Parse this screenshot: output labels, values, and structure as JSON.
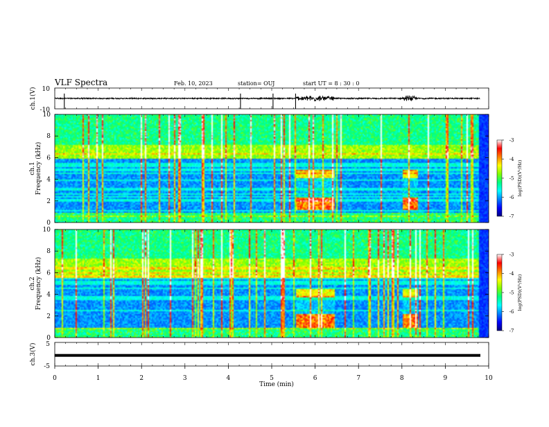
{
  "header": {
    "title": "VLF Spectra",
    "date": "Feb. 10, 2023",
    "station": "station= OUJ",
    "start_ut": "start  UT =   8  : 30 : 0"
  },
  "chart_data": [
    {
      "type": "line",
      "name": "waveform-ch1",
      "ylabel": "ch.1(V)",
      "ylim": [
        -10,
        10
      ],
      "yticks": [
        "10",
        "-10"
      ],
      "xlim": [
        0,
        10
      ],
      "bursts_min": [
        [
          5.55,
          6.45
        ],
        [
          8.0,
          8.35
        ]
      ],
      "spikes_min": [
        0.22,
        4.28,
        5.03,
        5.55
      ]
    },
    {
      "type": "heatmap",
      "name": "spectrogram-ch1",
      "ylabel": "ch.1\nFrequency (kHz)",
      "ylim": [
        0,
        10
      ],
      "yticks": [
        "0",
        "2",
        "4",
        "6",
        "8",
        "10"
      ],
      "xlim": [
        0,
        10
      ],
      "colorbar": {
        "label": "log(PSD)(V²/Hz)",
        "range": [
          -7,
          -3
        ],
        "ticks": [
          "-3",
          "-4",
          "-5",
          "-6",
          "-7"
        ]
      },
      "noise_band_khz": [
        6.0,
        7.2
      ],
      "events": [
        {
          "t": [
            5.55,
            6.45
          ],
          "f": [
            1.2,
            5.0
          ]
        },
        {
          "t": [
            8.0,
            8.35
          ],
          "f": [
            1.2,
            5.0
          ]
        }
      ]
    },
    {
      "type": "heatmap",
      "name": "spectrogram-ch2",
      "ylabel": "ch.2\nFrequency (kHz)",
      "ylim": [
        0,
        10
      ],
      "yticks": [
        "0",
        "2",
        "4",
        "6",
        "8",
        "10"
      ],
      "xlim": [
        0,
        10
      ],
      "colorbar": {
        "label": "log(PSD)(V²/Hz)",
        "range": [
          -7,
          -3
        ],
        "ticks": [
          "-3",
          "-4",
          "-5",
          "-6",
          "-7"
        ]
      },
      "noise_band_khz": [
        5.6,
        7.4
      ],
      "events": [
        {
          "t": [
            5.55,
            6.45
          ],
          "f": [
            1.0,
            4.6
          ]
        },
        {
          "t": [
            8.0,
            8.35
          ],
          "f": [
            1.0,
            4.6
          ]
        }
      ]
    },
    {
      "type": "line",
      "name": "waveform-ch3",
      "ylabel": "ch.3(V)",
      "ylim": [
        -5,
        5
      ],
      "yticks": [
        "5",
        "-5"
      ],
      "xlim": [
        0,
        10
      ],
      "constant_value_v": -0.5
    }
  ],
  "xaxis": {
    "label": "Time (min)",
    "ticks": [
      "0",
      "1",
      "2",
      "3",
      "4",
      "5",
      "6",
      "7",
      "8",
      "9",
      "10"
    ]
  },
  "colors": {
    "colormap": [
      "#000080",
      "#0000ff",
      "#0080ff",
      "#00ffff",
      "#00ff80",
      "#80ff00",
      "#ffff00",
      "#ff8000",
      "#ff0000",
      "#ffffff"
    ]
  }
}
